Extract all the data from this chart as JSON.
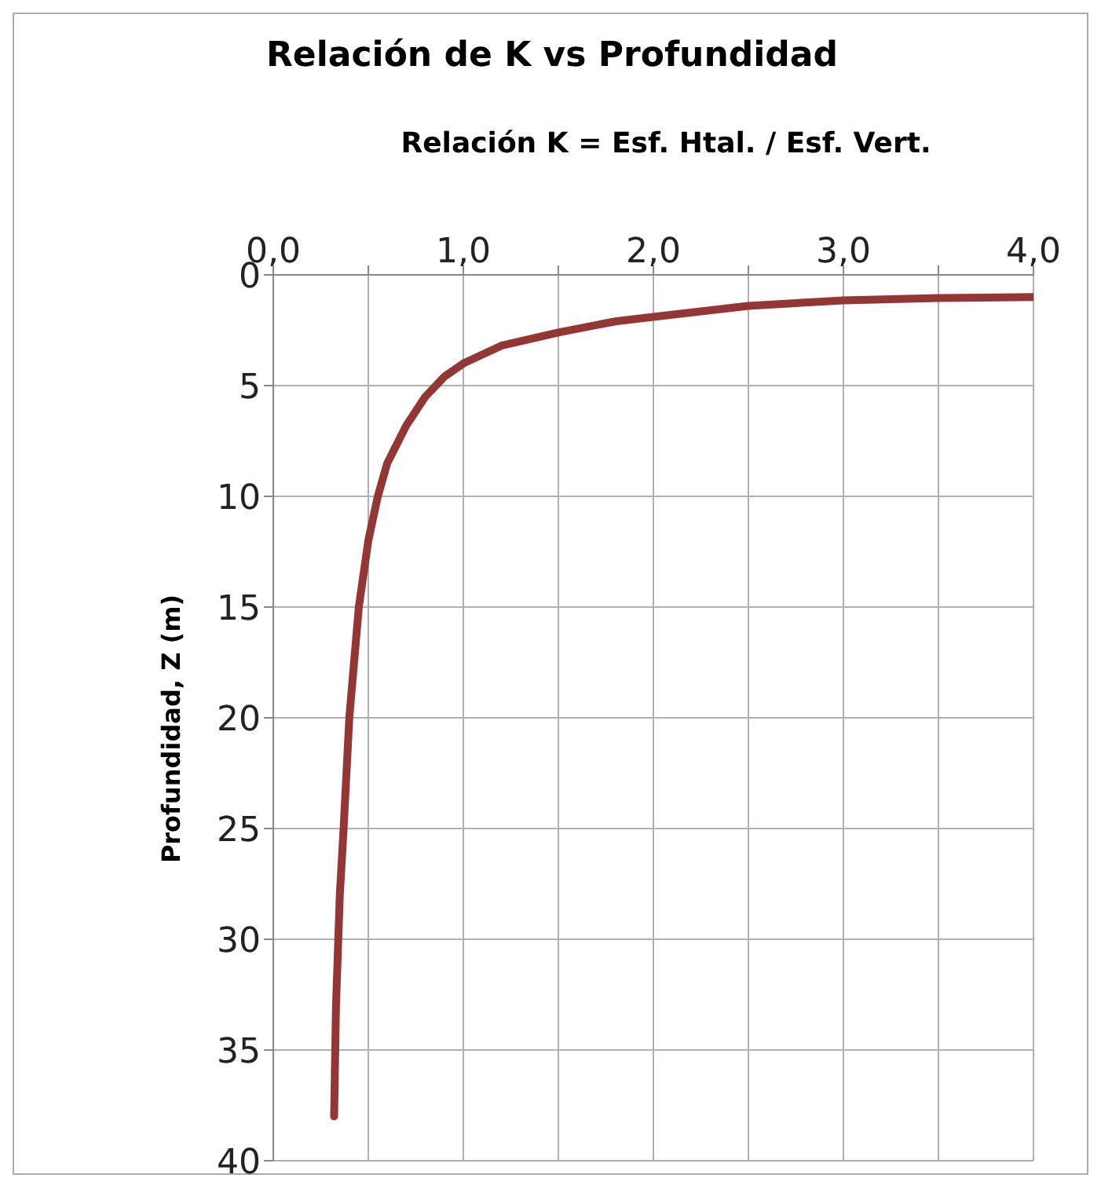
{
  "chart_data": {
    "type": "line",
    "title": "Relación de K vs Profundidad",
    "xlabel": "Relación K = Esf. Htal. / Esf. Vert.",
    "ylabel": "Profundidad, Z (m)",
    "series": [
      {
        "color": "#943634",
        "x": [
          0.32,
          0.33,
          0.35,
          0.37,
          0.4,
          0.45,
          0.5,
          0.55,
          0.6,
          0.7,
          0.8,
          0.9,
          1.0,
          1.2,
          1.5,
          1.8,
          2.0,
          2.5,
          3.0,
          3.5,
          4.0
        ],
        "values": [
          38,
          33,
          28,
          25,
          20,
          15,
          12,
          10,
          8.5,
          6.8,
          5.5,
          4.6,
          4.0,
          3.2,
          2.6,
          2.1,
          1.9,
          1.4,
          1.15,
          1.05,
          1.0
        ]
      }
    ],
    "xlim": [
      0,
      4
    ],
    "ylim": [
      40,
      0
    ],
    "xticks": [
      {
        "value": 0,
        "label": "0,0"
      },
      {
        "value": 0.5,
        "label": null
      },
      {
        "value": 1,
        "label": "1,0"
      },
      {
        "value": 1.5,
        "label": null
      },
      {
        "value": 2,
        "label": "2,0"
      },
      {
        "value": 2.5,
        "label": null
      },
      {
        "value": 3,
        "label": "3,0"
      },
      {
        "value": 3.5,
        "label": null
      },
      {
        "value": 4,
        "label": "4,0"
      }
    ],
    "yticks": [
      0,
      5,
      10,
      15,
      20,
      25,
      30,
      35,
      40
    ],
    "grid": true,
    "marker": "none",
    "line_style": "solid"
  }
}
